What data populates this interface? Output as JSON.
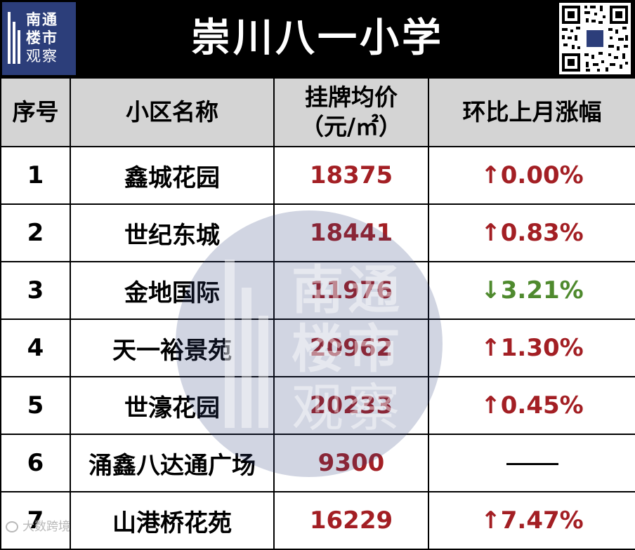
{
  "brand": {
    "logo_line1": "南通",
    "logo_line2": "楼市",
    "logo_line3": "观察"
  },
  "title": "崇川八一小学",
  "table": {
    "headers": {
      "index": "序号",
      "name": "小区名称",
      "price_line1": "挂牌均价",
      "price_line2": "（元/㎡）",
      "change": "环比上月涨幅"
    },
    "rows": [
      {
        "index": "1",
        "name": "鑫城花园",
        "price": "18375",
        "change": "↑0.00%",
        "direction": "up"
      },
      {
        "index": "2",
        "name": "世纪东城",
        "price": "18441",
        "change": "↑0.83%",
        "direction": "up"
      },
      {
        "index": "3",
        "name": "金地国际",
        "price": "11976",
        "change": "↓3.21%",
        "direction": "down"
      },
      {
        "index": "4",
        "name": "天一裕景苑",
        "price": "20962",
        "change": "↑1.30%",
        "direction": "up"
      },
      {
        "index": "5",
        "name": "世濠花园",
        "price": "20233",
        "change": "↑0.45%",
        "direction": "up"
      },
      {
        "index": "6",
        "name": "涌鑫八达通广场",
        "price": "9300",
        "change": "",
        "direction": "flat"
      },
      {
        "index": "7",
        "name": "山港桥花苑",
        "price": "16229",
        "change": "↑7.47%",
        "direction": "up"
      }
    ]
  },
  "footer_watermark": "大数跨境",
  "colors": {
    "header_bg": "#000000",
    "brand_blue": "#2c3e7a",
    "column_header_bg": "#d4d4d4",
    "up": "#a31f24",
    "down": "#4f8a2e"
  }
}
